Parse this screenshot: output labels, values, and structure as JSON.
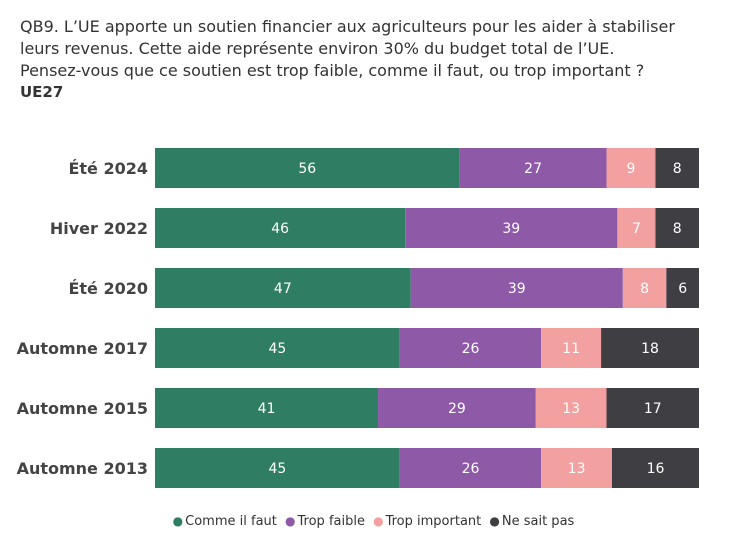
{
  "question": {
    "line1": "QB9. L’UE apporte un soutien financier aux agriculteurs pour les aider à stabiliser",
    "line2": "leurs revenus. Cette aide représente environ 30% du budget total de l’UE.",
    "line3": "Pensez-vous que ce soutien est trop faible, comme il faut, ou trop important ?",
    "scope": "UE27"
  },
  "chart_data": {
    "type": "bar",
    "orientation": "horizontal",
    "stacked": true,
    "categories": [
      "Été 2024",
      "Hiver 2022",
      "Été 2020",
      "Automne 2017",
      "Automne 2015",
      "Automne 2013"
    ],
    "series": [
      {
        "name": "Comme il faut",
        "color": "#2f7d62",
        "values": [
          56,
          46,
          47,
          45,
          41,
          45
        ]
      },
      {
        "name": "Trop faible",
        "color": "#8e5aa8",
        "values": [
          27,
          39,
          39,
          26,
          29,
          26
        ]
      },
      {
        "name": "Trop important",
        "color": "#f2a0a0",
        "values": [
          9,
          7,
          8,
          11,
          13,
          13
        ]
      },
      {
        "name": "Ne sait pas",
        "color": "#3f3f43",
        "values": [
          8,
          8,
          6,
          18,
          17,
          16
        ]
      }
    ],
    "legend_position": "bottom",
    "grid": false
  }
}
